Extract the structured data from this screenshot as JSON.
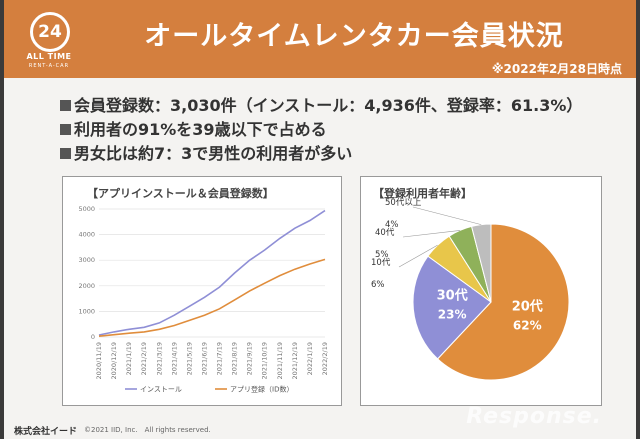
{
  "header": {
    "logo_number": "24",
    "logo_text": "ALL TIME",
    "logo_sub": "RENT-A-CAR",
    "title": "オールタイムレンタカー会員状況",
    "date_note": "※2022年2月28日時点",
    "color": "#d47f3e"
  },
  "bullets": [
    "会員登録数：3,030件（インストール：4,936件、登録率：61.3%）",
    "利用者の91%を39歳以下で占める",
    "男女比は約7：3で男性の利用者が多い"
  ],
  "line_panel": {
    "title": "【アプリインストール＆会員登録数】"
  },
  "pie_panel": {
    "title": "【登録利用者年齢】"
  },
  "footer": {
    "company": "株式会社イード",
    "copyright": "©2021 IID, Inc.　All rights reserved."
  },
  "watermark": "Response.",
  "chart_data": [
    {
      "type": "line",
      "title": "【アプリインストール＆会員登録数】",
      "x": [
        "2020/11/19",
        "2020/12/19",
        "2021/1/19",
        "2021/2/19",
        "2021/3/19",
        "2021/4/19",
        "2021/5/19",
        "2021/6/19",
        "2021/7/19",
        "2021/8/19",
        "2021/9/19",
        "2021/10/19",
        "2021/11/19",
        "2021/12/19",
        "2022/1/19",
        "2022/2/19"
      ],
      "ylim": [
        0,
        5000
      ],
      "yticks": [
        0,
        1000,
        2000,
        3000,
        4000,
        5000
      ],
      "series": [
        {
          "name": "インストール",
          "color": "#8f8fd6",
          "values": [
            80,
            200,
            300,
            380,
            550,
            850,
            1200,
            1550,
            1950,
            2500,
            3000,
            3400,
            3850,
            4250,
            4550,
            4936
          ]
        },
        {
          "name": "アプリ登録（ID数）",
          "color": "#e08d3c",
          "values": [
            30,
            90,
            150,
            200,
            300,
            450,
            650,
            850,
            1100,
            1450,
            1800,
            2100,
            2400,
            2650,
            2850,
            3030
          ]
        }
      ],
      "grid": true,
      "legend": "bottom"
    },
    {
      "type": "pie",
      "title": "【登録利用者年齢】",
      "slices": [
        {
          "label": "20代",
          "value": 62,
          "text": "62%",
          "color": "#e08d3c"
        },
        {
          "label": "30代",
          "value": 23,
          "text": "23%",
          "color": "#8f8fd6"
        },
        {
          "label": "10代",
          "value": 6,
          "text": "6%",
          "color": "#e8c64a"
        },
        {
          "label": "40代",
          "value": 5,
          "text": "5%",
          "color": "#8fb15a"
        },
        {
          "label": "50代以上",
          "value": 4,
          "text": "4%",
          "color": "#bdbdbd"
        }
      ]
    }
  ]
}
